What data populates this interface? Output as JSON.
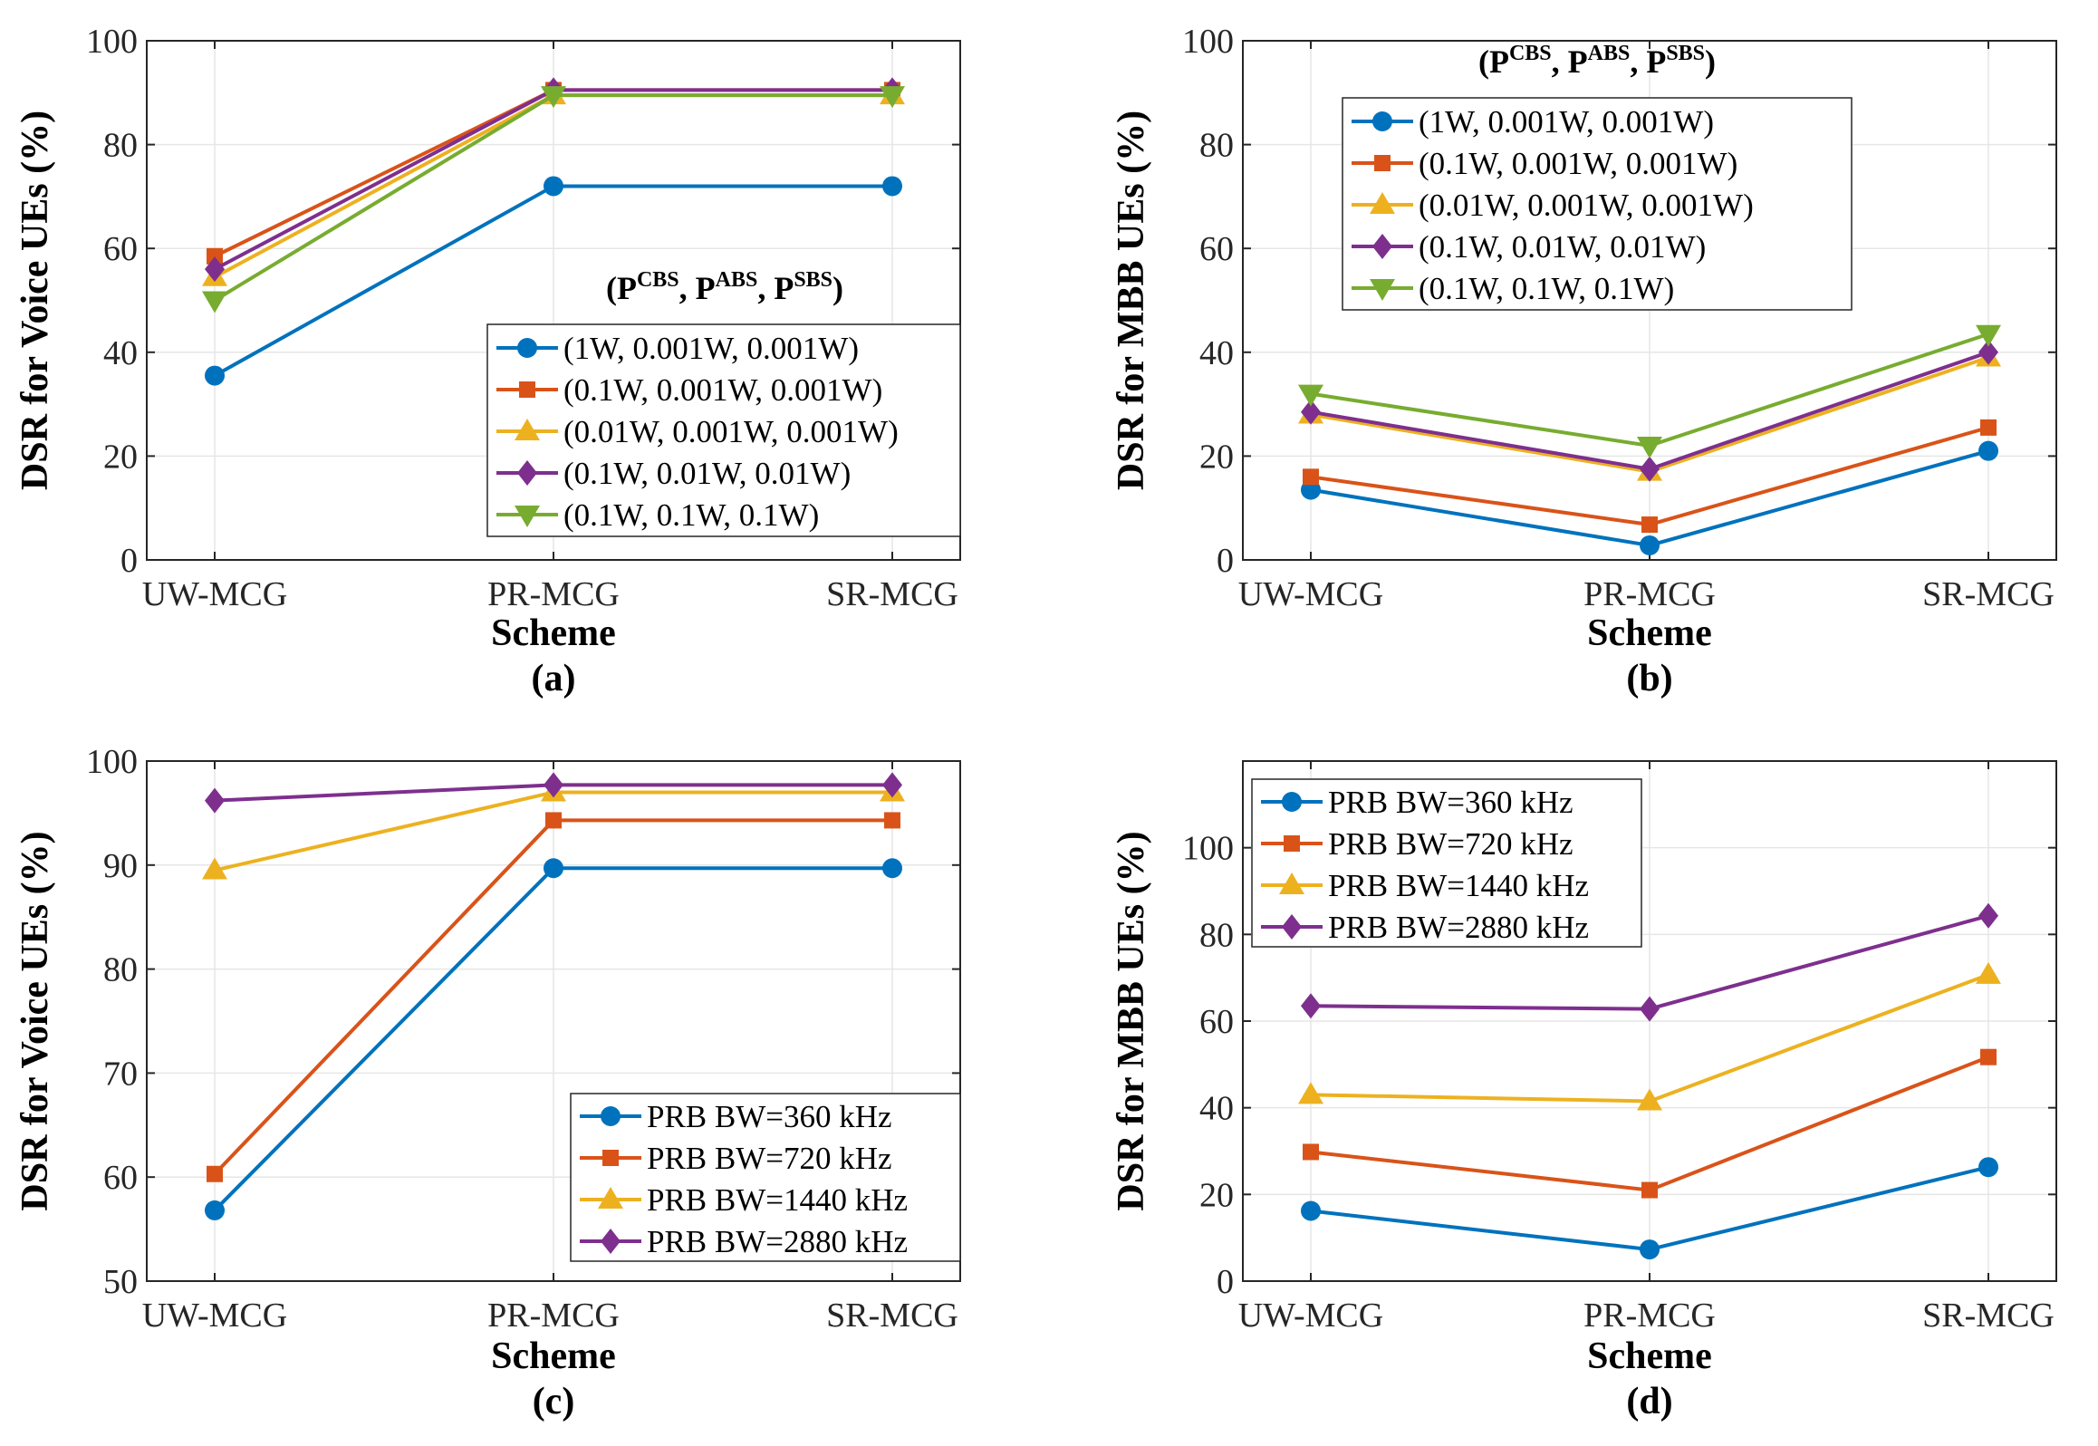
{
  "chart_data": [
    {
      "type": "line",
      "panel_label": "(a)",
      "xlabel": "Scheme",
      "ylabel": "DSR for Voice UEs (%)",
      "categories": [
        "UW-MCG",
        "PR-MCG",
        "SR-MCG"
      ],
      "ylim": [
        0,
        100
      ],
      "yticks": [
        0,
        20,
        40,
        60,
        80,
        100
      ],
      "grid": true,
      "legend_title": {
        "open": "(",
        "p": "P",
        "cbs": "CBS",
        "comma1": ", ",
        "abs": "ABS",
        "comma2": ", ",
        "sbs": "SBS",
        "close": ")"
      },
      "legend_position": "center-right",
      "series": [
        {
          "name": "(1W, 0.001W, 0.001W)",
          "color": "#0072BD",
          "marker": "circle",
          "values": [
            35.5,
            72,
            72
          ]
        },
        {
          "name": "(0.1W, 0.001W, 0.001W)",
          "color": "#D95319",
          "marker": "square",
          "values": [
            58.5,
            90.5,
            90.5
          ]
        },
        {
          "name": "(0.01W, 0.001W, 0.001W)",
          "color": "#EDB120",
          "marker": "triangle-up",
          "values": [
            54.5,
            89.5,
            89.5
          ]
        },
        {
          "name": "(0.1W, 0.01W, 0.01W)",
          "color": "#7E2F8E",
          "marker": "diamond",
          "values": [
            56,
            90.5,
            90.5
          ]
        },
        {
          "name": "(0.1W, 0.1W, 0.1W)",
          "color": "#77AC30",
          "marker": "triangle-down",
          "values": [
            50,
            89.5,
            89.5
          ]
        }
      ]
    },
    {
      "type": "line",
      "panel_label": "(b)",
      "xlabel": "Scheme",
      "ylabel": "DSR for MBB UEs (%)",
      "categories": [
        "UW-MCG",
        "PR-MCG",
        "SR-MCG"
      ],
      "ylim": [
        0,
        100
      ],
      "yticks": [
        0,
        20,
        40,
        60,
        80,
        100
      ],
      "grid": true,
      "legend_title": {
        "open": "(",
        "p": "P",
        "cbs": "CBS",
        "comma1": ", ",
        "abs": "ABS",
        "comma2": ", ",
        "sbs": "SBS",
        "close": ")"
      },
      "legend_position": "top-left",
      "series": [
        {
          "name": "(1W, 0.001W, 0.001W)",
          "color": "#0072BD",
          "marker": "circle",
          "values": [
            13.5,
            2.8,
            21
          ]
        },
        {
          "name": "(0.1W, 0.001W, 0.001W)",
          "color": "#D95319",
          "marker": "square",
          "values": [
            16,
            6.8,
            25.5
          ]
        },
        {
          "name": "(0.01W, 0.001W, 0.001W)",
          "color": "#EDB120",
          "marker": "triangle-up",
          "values": [
            28,
            17,
            39
          ]
        },
        {
          "name": "(0.1W, 0.01W, 0.01W)",
          "color": "#7E2F8E",
          "marker": "diamond",
          "values": [
            28.5,
            17.5,
            40
          ]
        },
        {
          "name": "(0.1W, 0.1W, 0.1W)",
          "color": "#77AC30",
          "marker": "triangle-down",
          "values": [
            32,
            22,
            43.5
          ]
        }
      ]
    },
    {
      "type": "line",
      "panel_label": "(c)",
      "xlabel": "Scheme",
      "ylabel": "DSR for Voice UEs (%)",
      "categories": [
        "UW-MCG",
        "PR-MCG",
        "SR-MCG"
      ],
      "ylim": [
        50,
        100
      ],
      "yticks": [
        50,
        60,
        70,
        80,
        90,
        100
      ],
      "grid": true,
      "legend_position": "bottom-right",
      "series": [
        {
          "name": "PRB BW=360 kHz",
          "color": "#0072BD",
          "marker": "circle",
          "values": [
            56.8,
            89.7,
            89.7
          ]
        },
        {
          "name": "PRB BW=720 kHz",
          "color": "#D95319",
          "marker": "square",
          "values": [
            60.3,
            94.3,
            94.3
          ]
        },
        {
          "name": "PRB BW=1440 kHz",
          "color": "#EDB120",
          "marker": "triangle-up",
          "values": [
            89.5,
            97,
            97
          ]
        },
        {
          "name": "PRB BW=2880 kHz",
          "color": "#7E2F8E",
          "marker": "diamond",
          "values": [
            96.2,
            97.7,
            97.7
          ]
        }
      ]
    },
    {
      "type": "line",
      "panel_label": "(d)",
      "xlabel": "Scheme",
      "ylabel": "DSR for MBB UEs (%)",
      "categories": [
        "UW-MCG",
        "PR-MCG",
        "SR-MCG"
      ],
      "ylim": [
        0,
        120
      ],
      "yticks": [
        0,
        20,
        40,
        60,
        80,
        100
      ],
      "grid": true,
      "legend_position": "top-left",
      "series": [
        {
          "name": "PRB BW=360 kHz",
          "color": "#0072BD",
          "marker": "circle",
          "values": [
            16.2,
            7.3,
            26.3
          ]
        },
        {
          "name": "PRB BW=720 kHz",
          "color": "#D95319",
          "marker": "square",
          "values": [
            29.8,
            21,
            51.7
          ]
        },
        {
          "name": "PRB BW=1440 kHz",
          "color": "#EDB120",
          "marker": "triangle-up",
          "values": [
            43,
            41.5,
            70.7
          ]
        },
        {
          "name": "PRB BW=2880 kHz",
          "color": "#7E2F8E",
          "marker": "diamond",
          "values": [
            63.5,
            62.8,
            84.3
          ]
        }
      ]
    }
  ]
}
